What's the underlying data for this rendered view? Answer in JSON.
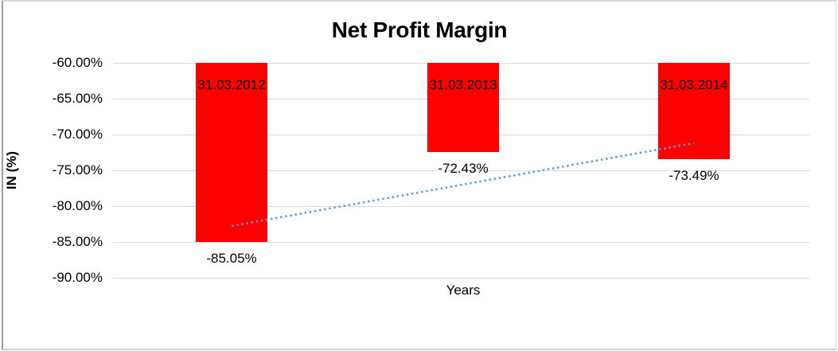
{
  "chart_data": {
    "type": "bar",
    "title": "Net Profit Margin",
    "xlabel": "Years",
    "ylabel": "IN (%)",
    "categories": [
      "31.03.2012",
      "31.03.2013",
      "31.03.2014"
    ],
    "values": [
      -85.05,
      -72.43,
      -73.49
    ],
    "value_labels": [
      "-85.05%",
      "-72.43%",
      "-73.49%"
    ],
    "ylim": [
      -90,
      -60
    ],
    "yticks": [
      -60,
      -65,
      -70,
      -75,
      -80,
      -85,
      -90
    ],
    "ytick_labels": [
      "-60.00%",
      "-65.00%",
      "-70.00%",
      "-75.00%",
      "-80.00%",
      "-85.00%",
      "-90.00%"
    ],
    "grid": true,
    "legend": "none",
    "bar_color": "#ff0000",
    "gridline_color": "#d9d9d9",
    "text_color": "#000000",
    "trendline": {
      "style": "dotted",
      "color": "#5b9bd5",
      "endpoint_values": [
        -82.77,
        -71.21
      ]
    }
  }
}
